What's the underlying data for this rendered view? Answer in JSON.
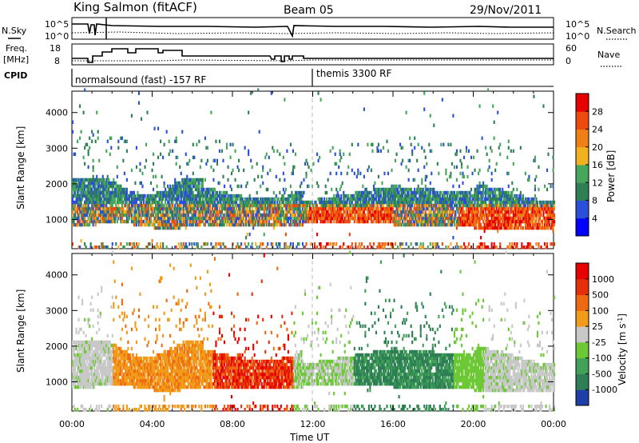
{
  "header": {
    "station": "King Salmon (fitACF)",
    "beam": "Beam 05",
    "date": "29/Nov/2011"
  },
  "top_panels": {
    "nsky_label": "N.Sky",
    "nsearch_label": "N.Search",
    "noise_ticks_left": [
      "10^5",
      "10^0"
    ],
    "noise_ticks_right": [
      "10^5",
      "10^0"
    ],
    "freq_label_1": "Freq.",
    "freq_label_2": "[MHz]",
    "freq_ticks": [
      "18",
      "8"
    ],
    "nave_label": "Nave",
    "nave_ticks": [
      "60",
      "0"
    ],
    "cpid_label": "CPID",
    "cpid_segments": [
      {
        "label": "normalsound (fast) -157 RF",
        "start_hour": 0
      },
      {
        "label": "themis 3300 RF",
        "start_hour": 12
      }
    ]
  },
  "chart_data": [
    {
      "type": "heatmap",
      "title": "",
      "quantity": "Power",
      "xlabel": "",
      "ylabel": "Slant Range [km]",
      "xlim_hours": [
        0,
        24
      ],
      "ylim_km": [
        180,
        4600
      ],
      "y_ticks": [
        "1000",
        "2000",
        "3000",
        "4000"
      ],
      "colorbar": {
        "label": "Power [dB]",
        "ticks": [
          "4",
          "8",
          "12",
          "16",
          "20",
          "24",
          "28"
        ],
        "colors": [
          "#0000ff",
          "#2a4fd8",
          "#2f7f55",
          "#46a75c",
          "#f2b21f",
          "#f07f15",
          "#ee4a10",
          "#e60000"
        ]
      }
    },
    {
      "type": "heatmap",
      "title": "",
      "quantity": "Velocity",
      "xlabel": "Time UT",
      "ylabel": "Slant Range [km]",
      "xlim_hours": [
        0,
        24
      ],
      "ylim_km": [
        180,
        4600
      ],
      "y_ticks": [
        "1000",
        "2000",
        "3000",
        "4000"
      ],
      "x_ticks": [
        "00:00",
        "04:00",
        "08:00",
        "12:00",
        "16:00",
        "20:00",
        "00:00"
      ],
      "colorbar": {
        "label": "Velocity [m s",
        "label_sup": "-1",
        "label_end": "]",
        "ticks": [
          "1000",
          "500",
          "100",
          "25",
          "-25",
          "-100",
          "-500",
          "-1000"
        ],
        "colors": [
          "#1f3fa8",
          "#2e7f55",
          "#41a157",
          "#6cc835",
          "#c8c8c8",
          "#f29a1a",
          "#ee6a12",
          "#e62f0a",
          "#e60000"
        ]
      }
    }
  ]
}
